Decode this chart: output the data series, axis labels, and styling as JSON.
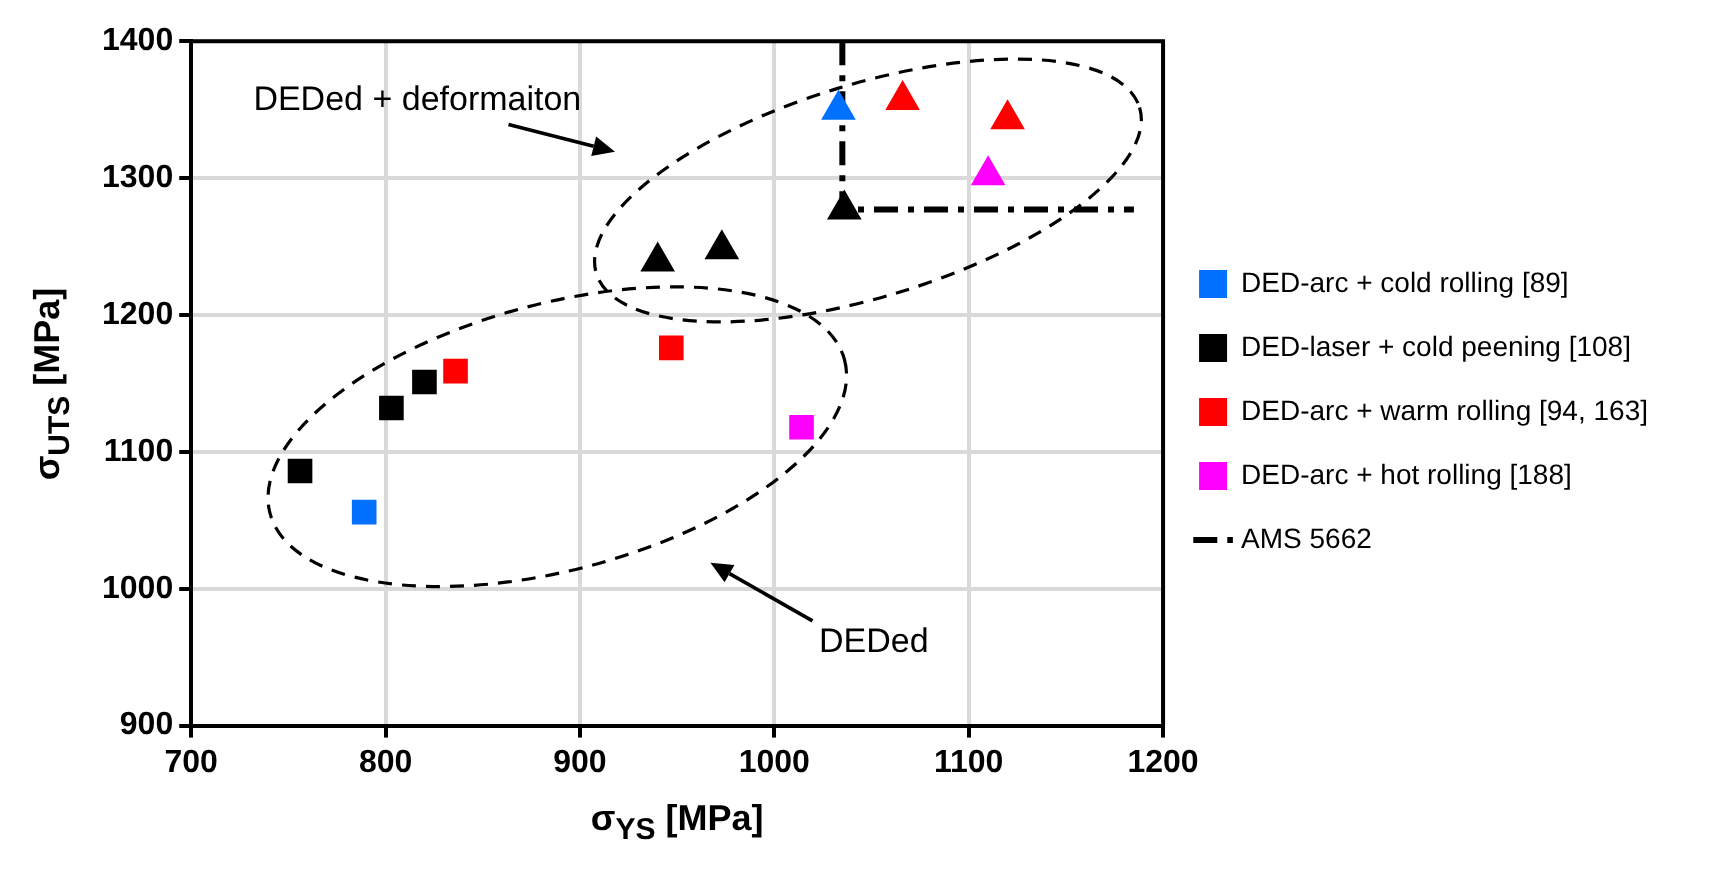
{
  "chart_data": {
    "type": "scatter",
    "xlabel": "σ$_{YS}$ [MPa]",
    "ylabel": "σ$_{UTS}$ [MPa]",
    "xlim": [
      700,
      1200
    ],
    "xticks": [
      700,
      800,
      900,
      1000,
      1100,
      1200
    ],
    "ylim": [
      900,
      1400
    ],
    "yticks": [
      900,
      1000,
      1100,
      1200,
      1300,
      1400
    ],
    "grid": true,
    "legend": "right",
    "series": [
      {
        "name": "DED-arc + cold rolling [89]",
        "color": "#0070ff",
        "marker": "square",
        "x": [
          789
        ],
        "values": [
          1056
        ]
      },
      {
        "name": "DED-laser + cold peening [108]",
        "color": "#000000",
        "marker": "square",
        "x": [
          756,
          803,
          820
        ],
        "values": [
          1086,
          1132,
          1151
        ]
      },
      {
        "name": "DED-arc + warm rolling [94, 163]",
        "color": "#ff0000",
        "marker": "square",
        "x": [
          836,
          947
        ],
        "values": [
          1159,
          1176
        ]
      },
      {
        "name": "DED-arc + hot rolling [188]",
        "color": "#ff00ff",
        "marker": "square",
        "x": [
          1014
        ],
        "values": [
          1118
        ]
      },
      {
        "color": "#0070ff",
        "marker": "triangle",
        "x": [
          1033
        ],
        "values": [
          1350
        ]
      },
      {
        "color": "#000000",
        "marker": "triangle",
        "x": [
          940,
          973,
          1036
        ],
        "values": [
          1239,
          1248,
          1277
        ]
      },
      {
        "color": "#ff0000",
        "marker": "triangle",
        "x": [
          1066,
          1120
        ],
        "values": [
          1357,
          1343
        ]
      },
      {
        "color": "#ff00ff",
        "marker": "triangle",
        "x": [
          1110
        ],
        "values": [
          1302
        ]
      },
      {
        "name": "AMS 5662",
        "type": "line",
        "color": "#000000",
        "marker": "none",
        "line_style": "dashed",
        "x": [
          1035,
          1035,
          1185
        ],
        "values": [
          1400,
          1277,
          1277
        ]
      }
    ],
    "annotations": [
      "DEDed + deformaiton",
      "DEDed"
    ]
  }
}
